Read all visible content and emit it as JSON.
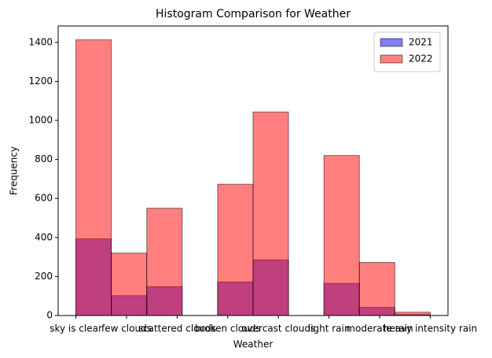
{
  "chart_data": {
    "type": "histogram",
    "title": "Histogram Comparison for Weather",
    "xlabel": "Weather",
    "ylabel": "Frequency",
    "bins": [
      0,
      0.7,
      1.4,
      2.1,
      2.8,
      3.5,
      4.2,
      4.9,
      5.6,
      6.3,
      7
    ],
    "series": [
      {
        "name": "2021",
        "color": "#0000ff",
        "values": [
          393,
          102,
          148,
          0,
          172,
          285,
          0,
          165,
          42,
          5
        ]
      },
      {
        "name": "2022",
        "color": "#ff0000",
        "values": [
          1413,
          320,
          550,
          0,
          673,
          1043,
          0,
          820,
          272,
          17
        ]
      }
    ],
    "xlim": [
      -0.35,
      7.35
    ],
    "xticks": [
      {
        "value": 0,
        "label": "sky is clear"
      },
      {
        "value": 1,
        "label": "few clouds"
      },
      {
        "value": 2,
        "label": "scattered clouds"
      },
      {
        "value": 3,
        "label": "broken clouds"
      },
      {
        "value": 4,
        "label": "overcast clouds"
      },
      {
        "value": 5,
        "label": "light rain"
      },
      {
        "value": 6,
        "label": "moderate rain"
      },
      {
        "value": 7,
        "label": "heavy intensity rain"
      }
    ],
    "ylim": [
      0,
      1484
    ],
    "yticks": [
      0,
      200,
      400,
      600,
      800,
      1000,
      1200,
      1400
    ],
    "legend": "upper right",
    "grid": false
  }
}
